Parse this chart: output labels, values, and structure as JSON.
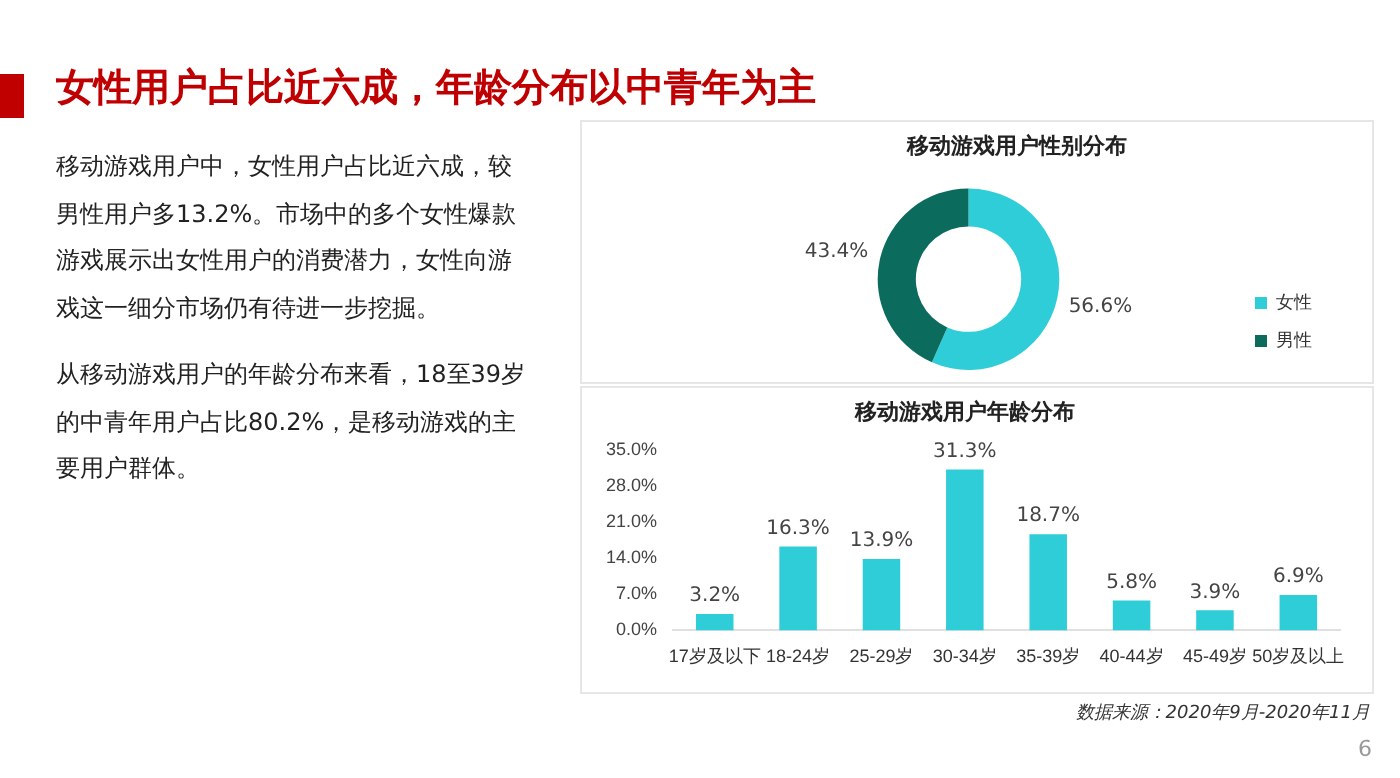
{
  "chart_data": [
    {
      "type": "other",
      "title": "女性用户占比近六成，年龄分布以中青年为主",
      "annotations": [
        "移动游戏用户中，女性用户占比近六成，较男性用户多13.2%。市场中的多个女性爆款游戏展示出女性用户的消费潜力，女性向游戏这一细分市场仍有待进一步挖掘。",
        "从移动游戏用户的年龄分布来看，18至39岁的中青年用户占比80.2%，是移动游戏的主要用户群体。",
        "6"
      ]
    },
    {
      "type": "donut",
      "title": "移动游戏用户性别分布",
      "categories": [
        "女性",
        "男性"
      ],
      "values": [
        56.6,
        43.4
      ],
      "colors": [
        "#2fcdd8",
        "#0b6b5d"
      ],
      "value_labels": [
        "56.6%",
        "43.4%"
      ],
      "legend": "right"
    },
    {
      "type": "bar",
      "title": "移动游戏用户年龄分布",
      "categories": [
        "17岁及以下",
        "18-24岁",
        "25-29岁",
        "30-34岁",
        "35-39岁",
        "40-44岁",
        "45-49岁",
        "50岁及以上"
      ],
      "values": [
        3.2,
        16.3,
        13.9,
        31.3,
        18.7,
        5.8,
        3.9,
        6.9
      ],
      "color": "#2fcdd8",
      "value_labels": [
        "3.2%",
        "16.3%",
        "13.9%",
        "31.3%",
        "18.7%",
        "5.8%",
        "3.9%",
        "6.9%"
      ],
      "ylim": [
        0,
        35
      ],
      "yticks": [
        {
          "value": 0,
          "label": "0.0%"
        },
        {
          "value": 7,
          "label": "7.0%"
        },
        {
          "value": 14,
          "label": "14.0%"
        },
        {
          "value": 21,
          "label": "21.0%"
        },
        {
          "value": 28,
          "label": "28.0%"
        },
        {
          "value": 35,
          "label": "35.0%"
        }
      ],
      "grid": false,
      "legend": false,
      "annotations": [
        "数据来源：2020年9月-2020年11月"
      ]
    }
  ]
}
